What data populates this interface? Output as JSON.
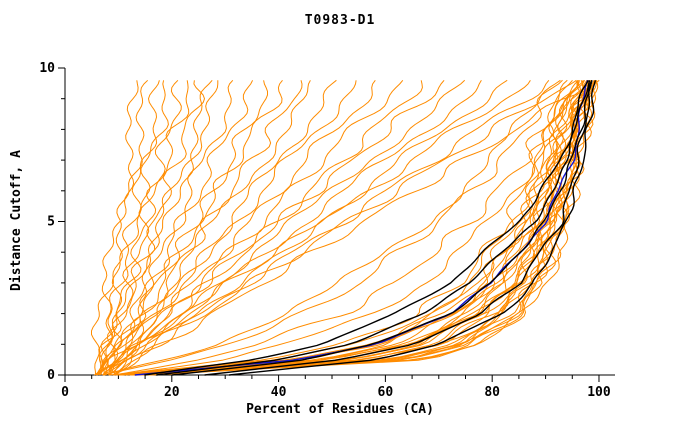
{
  "chart_data": {
    "type": "line",
    "title": "T0983-D1",
    "xlabel": "Percent of Residues (CA)",
    "ylabel": "Distance Cutoff, A",
    "xlim": [
      0,
      103
    ],
    "ylim": [
      0,
      10
    ],
    "x_ticks": [
      0,
      20,
      40,
      60,
      80,
      100
    ],
    "y_ticks": [
      0,
      5,
      10
    ],
    "x_minor_step": 5,
    "y_minor_step": 1,
    "colors": {
      "models": "#ff8c00",
      "reference": "#1414cc",
      "best": "#000000",
      "axis": "#000000"
    },
    "cutoffs": [
      0,
      0.5,
      1,
      2,
      3,
      5,
      7,
      9.7
    ],
    "series_groups": [
      {
        "name": "server-models",
        "color": "#ff8c00",
        "width": 1,
        "jitter": 1.1,
        "curves": [
          [
            6,
            6,
            7,
            8,
            8,
            10,
            12,
            14
          ],
          [
            5,
            6,
            6,
            7,
            8,
            11,
            13,
            16
          ],
          [
            7,
            8,
            8,
            9,
            10,
            13,
            15,
            18
          ],
          [
            6,
            7,
            7,
            9,
            10,
            13,
            16,
            20
          ],
          [
            8,
            9,
            9,
            11,
            12,
            15,
            18,
            22
          ],
          [
            6,
            7,
            8,
            10,
            12,
            15,
            19,
            24
          ],
          [
            7,
            8,
            9,
            11,
            13,
            17,
            21,
            26
          ],
          [
            9,
            10,
            11,
            13,
            15,
            19,
            23,
            28
          ],
          [
            6,
            7,
            8,
            11,
            13,
            18,
            23,
            30
          ],
          [
            8,
            9,
            11,
            13,
            16,
            21,
            26,
            33
          ],
          [
            7,
            8,
            10,
            13,
            16,
            22,
            28,
            36
          ],
          [
            9,
            11,
            12,
            15,
            18,
            25,
            31,
            39
          ],
          [
            6,
            8,
            10,
            14,
            17,
            25,
            32,
            42
          ],
          [
            8,
            10,
            12,
            16,
            19,
            27,
            35,
            45
          ],
          [
            7,
            9,
            11,
            16,
            20,
            28,
            37,
            48
          ],
          [
            9,
            11,
            13,
            18,
            22,
            31,
            40,
            52
          ],
          [
            6,
            9,
            11,
            17,
            22,
            32,
            42,
            56
          ],
          [
            8,
            11,
            13,
            19,
            24,
            35,
            45,
            60
          ],
          [
            7,
            10,
            13,
            19,
            25,
            37,
            48,
            64
          ],
          [
            9,
            12,
            15,
            21,
            27,
            40,
            52,
            68
          ],
          [
            6,
            9,
            13,
            20,
            26,
            40,
            54,
            72
          ],
          [
            8,
            11,
            15,
            22,
            29,
            43,
            57,
            76
          ],
          [
            7,
            11,
            14,
            22,
            30,
            45,
            60,
            80
          ],
          [
            9,
            13,
            17,
            25,
            32,
            48,
            63,
            84
          ],
          [
            6,
            10,
            14,
            23,
            31,
            49,
            65,
            88
          ],
          [
            8,
            12,
            17,
            26,
            34,
            52,
            69,
            92
          ],
          [
            7,
            11,
            16,
            26,
            35,
            53,
            71,
            96
          ],
          [
            9,
            14,
            18,
            28,
            37,
            56,
            75,
            100
          ],
          [
            12,
            55,
            68,
            78,
            83,
            89,
            93,
            97
          ],
          [
            14,
            60,
            72,
            81,
            86,
            91,
            94,
            98
          ],
          [
            10,
            48,
            62,
            74,
            80,
            87,
            91,
            96
          ],
          [
            15,
            65,
            76,
            84,
            88,
            93,
            95,
            99
          ],
          [
            11,
            42,
            57,
            70,
            77,
            85,
            90,
            95
          ],
          [
            13,
            58,
            70,
            80,
            85,
            90,
            93,
            98
          ],
          [
            9,
            38,
            52,
            66,
            74,
            83,
            88,
            94
          ],
          [
            16,
            68,
            79,
            86,
            90,
            94,
            96,
            99
          ],
          [
            12,
            50,
            64,
            76,
            82,
            88,
            92,
            97
          ],
          [
            14,
            62,
            74,
            83,
            87,
            92,
            95,
            98
          ],
          [
            10,
            45,
            60,
            72,
            79,
            86,
            91,
            96
          ],
          [
            13,
            57,
            70,
            79,
            85,
            90,
            94,
            98
          ],
          [
            11,
            52,
            66,
            77,
            83,
            89,
            93,
            97
          ],
          [
            15,
            64,
            75,
            84,
            88,
            93,
            96,
            99
          ],
          [
            12,
            54,
            67,
            78,
            84,
            90,
            93,
            97
          ],
          [
            9,
            40,
            55,
            68,
            76,
            84,
            89,
            95
          ],
          [
            14,
            61,
            73,
            82,
            87,
            92,
            95,
            98
          ],
          [
            11,
            47,
            61,
            73,
            80,
            87,
            91,
            96
          ],
          [
            13,
            59,
            71,
            81,
            86,
            91,
            94,
            98
          ],
          [
            10,
            44,
            58,
            71,
            78,
            86,
            90,
            96
          ],
          [
            16,
            66,
            77,
            85,
            89,
            93,
            96,
            99
          ],
          [
            12,
            51,
            65,
            76,
            83,
            89,
            92,
            97
          ],
          [
            14,
            63,
            74,
            83,
            88,
            92,
            95,
            98
          ],
          [
            11,
            49,
            63,
            75,
            81,
            88,
            92,
            96
          ],
          [
            13,
            56,
            69,
            79,
            85,
            90,
            94,
            98
          ],
          [
            15,
            67,
            78,
            85,
            89,
            94,
            96,
            99
          ],
          [
            8,
            20,
            30,
            45,
            55,
            70,
            82,
            93
          ],
          [
            9,
            25,
            36,
            52,
            62,
            76,
            86,
            95
          ],
          [
            7,
            18,
            28,
            42,
            52,
            68,
            80,
            92
          ],
          [
            10,
            30,
            42,
            58,
            67,
            80,
            88,
            96
          ]
        ]
      },
      {
        "name": "reference-model",
        "color": "#1414cc",
        "width": 1.4,
        "jitter": 0.35,
        "curves": [
          [
            13,
            44,
            58,
            72,
            80,
            90,
            95,
            98
          ]
        ]
      },
      {
        "name": "best-models",
        "color": "#000000",
        "width": 1.4,
        "jitter": 0.35,
        "curves": [
          [
            15,
            35,
            48,
            62,
            72,
            85,
            93,
            98
          ],
          [
            20,
            45,
            58,
            72,
            80,
            90,
            95,
            99
          ],
          [
            26,
            52,
            65,
            78,
            85,
            93,
            96,
            99
          ],
          [
            31,
            58,
            70,
            82,
            88,
            94,
            97,
            99.5
          ],
          [
            17,
            40,
            53,
            67,
            76,
            88,
            94,
            98.5
          ]
        ]
      }
    ]
  }
}
